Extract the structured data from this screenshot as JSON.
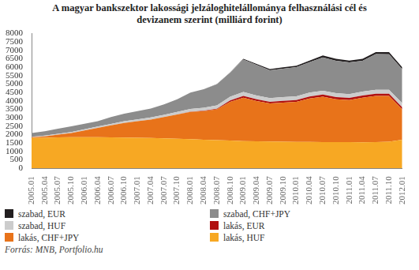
{
  "chart_data": {
    "type": "area",
    "title": "A magyar bankszektor lakossági jelzáloghitelállománya felhasználási cél és devizanem szerint (milliárd forint)",
    "annotation": "Forrás: MNB, Portfolio.hu",
    "stacked": true,
    "grid": false,
    "legend": "bottom",
    "categories": [
      "2005.01",
      "2005.04",
      "2005.07",
      "2005.10",
      "2006.01",
      "2006.04",
      "2006.07",
      "2006.10",
      "2007.01",
      "2007.04",
      "2007.07",
      "2007.10",
      "2008.01",
      "2008.04",
      "2008.07",
      "2008.10",
      "2009.01",
      "2009.04",
      "2009.07",
      "2009.10",
      "2010.01",
      "2010.04",
      "2010.07",
      "2010.10",
      "2011.01",
      "2011.04",
      "2011.07",
      "2011.10",
      "2012.01"
    ],
    "ylim": [
      0,
      8000
    ],
    "yticks": [
      0,
      500,
      1000,
      1500,
      2000,
      2500,
      3000,
      3500,
      4000,
      4500,
      5000,
      5500,
      6000,
      6500,
      7000,
      7500,
      8000
    ],
    "series": [
      {
        "name": "lakás, HUF",
        "color": "#f7a823",
        "values": [
          1800,
          1820,
          1840,
          1850,
          1850,
          1850,
          1840,
          1830,
          1820,
          1800,
          1780,
          1760,
          1730,
          1700,
          1680,
          1650,
          1620,
          1600,
          1590,
          1580,
          1570,
          1570,
          1560,
          1560,
          1560,
          1550,
          1560,
          1580,
          1700
        ]
      },
      {
        "name": "lakás, CHF+JPY",
        "color": "#e8731a",
        "values": [
          50,
          80,
          160,
          250,
          400,
          550,
          710,
          870,
          980,
          1100,
          1270,
          1440,
          1620,
          1700,
          1820,
          2300,
          2580,
          2400,
          2260,
          2320,
          2380,
          2580,
          2690,
          2540,
          2490,
          2650,
          2740,
          2720,
          1800
        ]
      },
      {
        "name": "lakás, EUR",
        "color": "#b01010",
        "values": [
          0,
          0,
          0,
          0,
          0,
          0,
          0,
          0,
          0,
          0,
          0,
          0,
          10,
          20,
          40,
          80,
          100,
          100,
          100,
          110,
          110,
          120,
          130,
          130,
          130,
          130,
          130,
          130,
          120
        ]
      },
      {
        "name": "szabad, HUF",
        "color": "#cccccc",
        "values": [
          30,
          40,
          50,
          60,
          70,
          80,
          90,
          100,
          110,
          120,
          130,
          150,
          170,
          180,
          200,
          220,
          230,
          230,
          220,
          220,
          220,
          230,
          230,
          230,
          230,
          230,
          230,
          240,
          250
        ]
      },
      {
        "name": "szabad, CHF+JPY",
        "color": "#8c8c8c",
        "values": [
          220,
          260,
          300,
          340,
          330,
          320,
          410,
          450,
          490,
          530,
          620,
          750,
          970,
          1100,
          1255,
          1430,
          1930,
          1810,
          1660,
          1690,
          1730,
          1800,
          1980,
          1930,
          1880,
          1830,
          2120,
          2100,
          2010
        ]
      },
      {
        "name": "szabad, EUR",
        "color": "#231f20",
        "values": [
          0,
          0,
          0,
          0,
          0,
          0,
          0,
          0,
          0,
          0,
          0,
          0,
          0,
          0,
          5,
          20,
          40,
          60,
          70,
          80,
          90,
          100,
          110,
          110,
          110,
          110,
          120,
          130,
          120
        ]
      }
    ]
  }
}
